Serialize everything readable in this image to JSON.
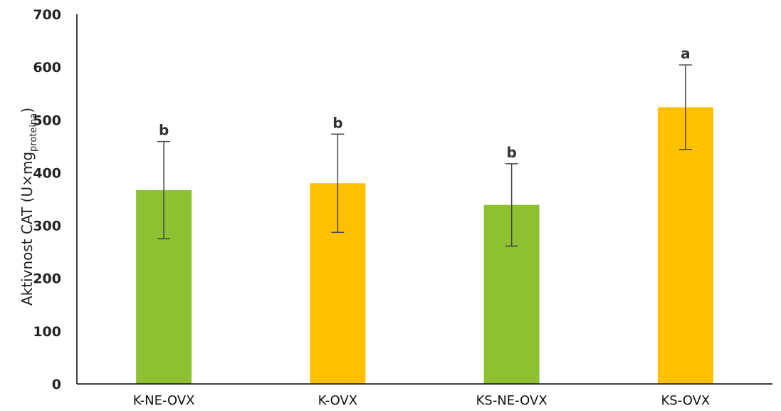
{
  "chart_data": {
    "type": "bar",
    "ylabel": {
      "main": "Aktivnost CAT (U×mg",
      "subscript": "proteina",
      "close": ")"
    },
    "ylim": [
      0,
      700
    ],
    "yticks": [
      0,
      100,
      200,
      300,
      400,
      500,
      600,
      700
    ],
    "grid": false,
    "legend": "none",
    "categories": [
      "K-NE-OVX",
      "K-OVX",
      "KS-NE-OVX",
      "KS-OVX"
    ],
    "values": [
      367,
      380,
      339,
      524
    ],
    "errors": [
      92,
      93,
      78,
      80
    ],
    "significance_labels": [
      "b",
      "b",
      "b",
      "a"
    ],
    "bar_colors": [
      "#8dc132",
      "#ffc000",
      "#8dc132",
      "#ffc000"
    ],
    "axis_color": "#000000",
    "error_bar_color": "#444444"
  }
}
